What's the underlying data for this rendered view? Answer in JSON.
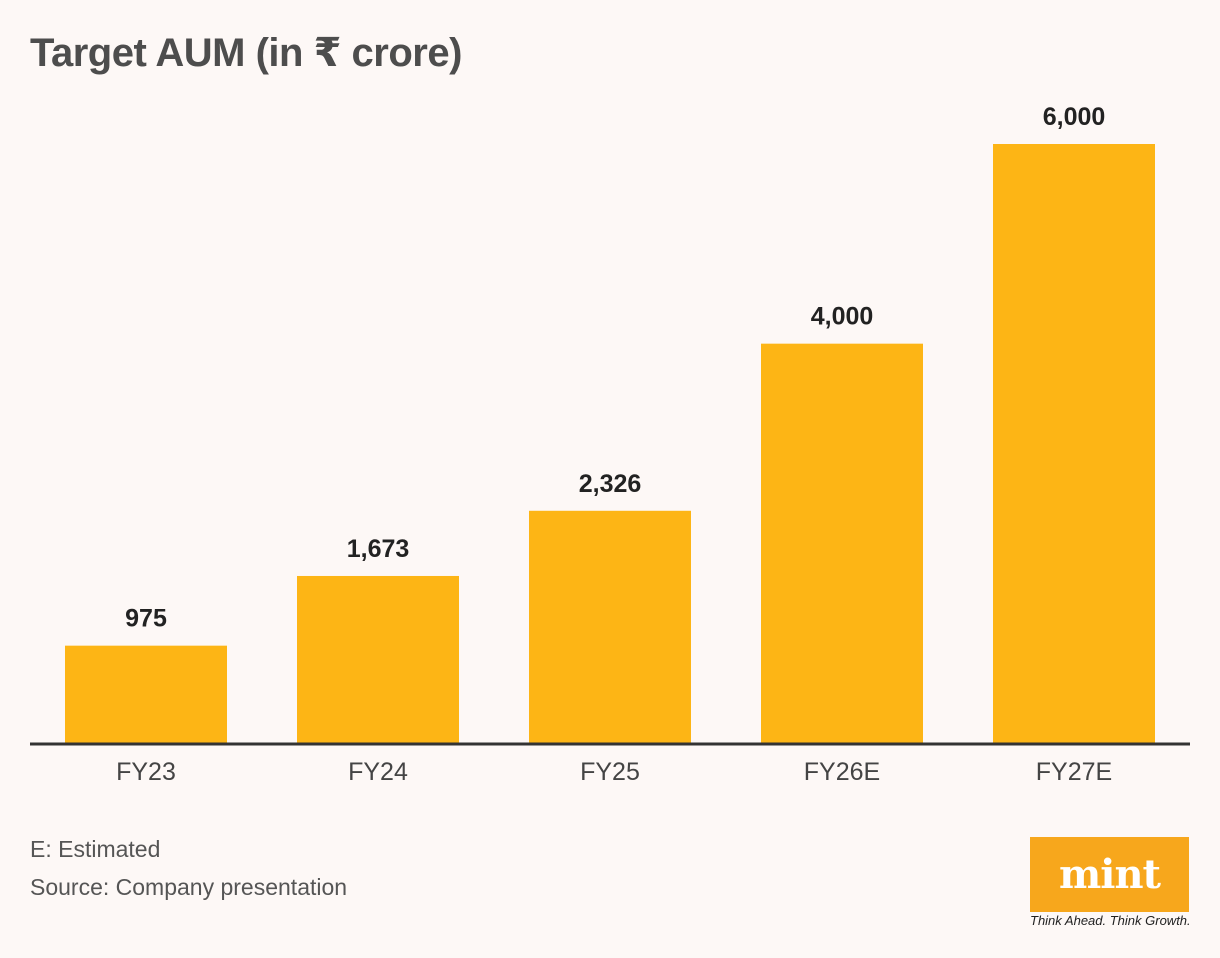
{
  "chart_data": {
    "type": "bar",
    "title": "Target AUM (in ₹ crore)",
    "categories": [
      "FY23",
      "FY24",
      "FY25",
      "FY26E",
      "FY27E"
    ],
    "values": [
      975,
      1673,
      2326,
      4000,
      6000
    ],
    "value_labels": [
      "975",
      "1,673",
      "2,326",
      "4,000",
      "6,000"
    ],
    "ylim": [
      0,
      6000
    ],
    "grid": false,
    "colors": {
      "bar": "#fdb515",
      "axis": "#333333",
      "label": "#222222",
      "tick": "#444444"
    }
  },
  "notes": {
    "estimate_note": "E: Estimated",
    "source": "Source: Company presentation"
  },
  "brand": {
    "logo_text": "mint",
    "tagline": "Think Ahead. Think Growth.",
    "logo_color": "#f7a71c"
  }
}
